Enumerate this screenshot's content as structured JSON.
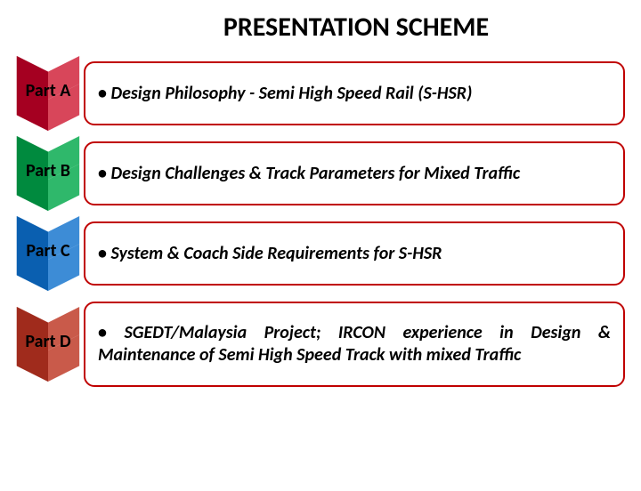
{
  "title": "PRESENTATION SCHEME",
  "border_color": "#c00000",
  "rows": [
    {
      "name": "part-a",
      "label": "Part A",
      "color_dark": "#a50021",
      "color_light": "#d8465a",
      "text": "Design Philosophy - Semi High Speed Rail (S-HSR)",
      "tall": false
    },
    {
      "name": "part-b",
      "label": "Part B",
      "color_dark": "#008a3e",
      "color_light": "#2fb86b",
      "text": "Design Challenges & Track Parameters for Mixed Traffic",
      "tall": false
    },
    {
      "name": "part-c",
      "label": "Part C",
      "color_dark": "#0a5fb0",
      "color_light": "#3d8cd6",
      "text": "System & Coach Side Requirements for S-HSR",
      "tall": false
    },
    {
      "name": "part-d",
      "label": "Part D",
      "color_dark": "#a02b1c",
      "color_light": "#c95a4a",
      "text": "SGEDT/Malaysia Project; IRCON experience in Design & Maintenance of Semi High Speed Track with mixed Traffic",
      "tall": true
    }
  ]
}
